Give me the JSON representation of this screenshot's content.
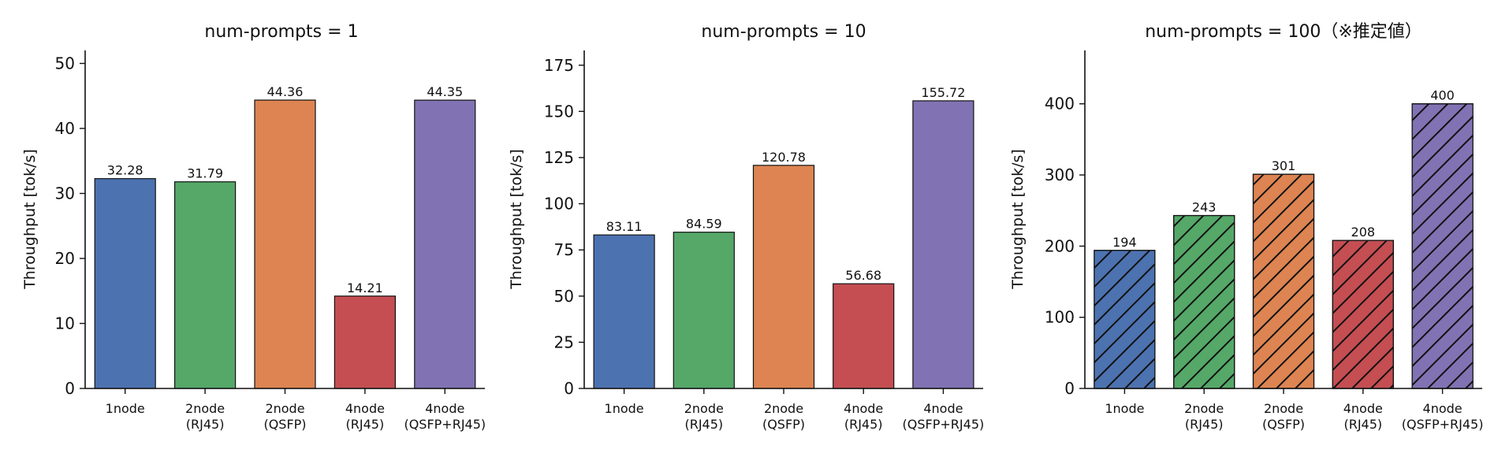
{
  "chart_data": [
    {
      "type": "bar",
      "title": "num-prompts = 1",
      "ylabel": "Throughput [tok/s]",
      "xlabel": "",
      "ylim": [
        0,
        52
      ],
      "yticks": [
        0,
        10,
        20,
        30,
        40,
        50
      ],
      "categories": [
        "1node",
        "2node\n(RJ45)",
        "2node\n(QSFP)",
        "4node\n(RJ45)",
        "4node\n(QSFP+RJ45)"
      ],
      "values": [
        32.28,
        31.79,
        44.36,
        14.21,
        44.35
      ],
      "data_labels": [
        "32.28",
        "31.79",
        "44.36",
        "14.21",
        "44.35"
      ],
      "colors": [
        "#4c72b0",
        "#55a868",
        "#dd8452",
        "#c44e52",
        "#8172b3"
      ],
      "hatch": false,
      "grid": false
    },
    {
      "type": "bar",
      "title": "num-prompts = 10",
      "ylabel": "Throughput [tok/s]",
      "xlabel": "",
      "ylim": [
        0,
        183
      ],
      "yticks": [
        0,
        25,
        50,
        75,
        100,
        125,
        150,
        175
      ],
      "categories": [
        "1node",
        "2node\n(RJ45)",
        "2node\n(QSFP)",
        "4node\n(RJ45)",
        "4node\n(QSFP+RJ45)"
      ],
      "values": [
        83.11,
        84.59,
        120.78,
        56.68,
        155.72
      ],
      "data_labels": [
        "83.11",
        "84.59",
        "120.78",
        "56.68",
        "155.72"
      ],
      "colors": [
        "#4c72b0",
        "#55a868",
        "#dd8452",
        "#c44e52",
        "#8172b3"
      ],
      "hatch": false,
      "grid": false
    },
    {
      "type": "bar",
      "title": "num-prompts = 100（※推定値）",
      "ylabel": "Throughput [tok/s]",
      "xlabel": "",
      "ylim": [
        0,
        475
      ],
      "yticks": [
        0,
        100,
        200,
        300,
        400
      ],
      "categories": [
        "1node",
        "2node\n(RJ45)",
        "2node\n(QSFP)",
        "4node\n(RJ45)",
        "4node\n(QSFP+RJ45)"
      ],
      "values": [
        194,
        243,
        301,
        208,
        400
      ],
      "data_labels": [
        "194",
        "243",
        "301",
        "208",
        "400"
      ],
      "colors": [
        "#4c72b0",
        "#55a868",
        "#dd8452",
        "#c44e52",
        "#8172b3"
      ],
      "hatch": true,
      "grid": false
    }
  ]
}
